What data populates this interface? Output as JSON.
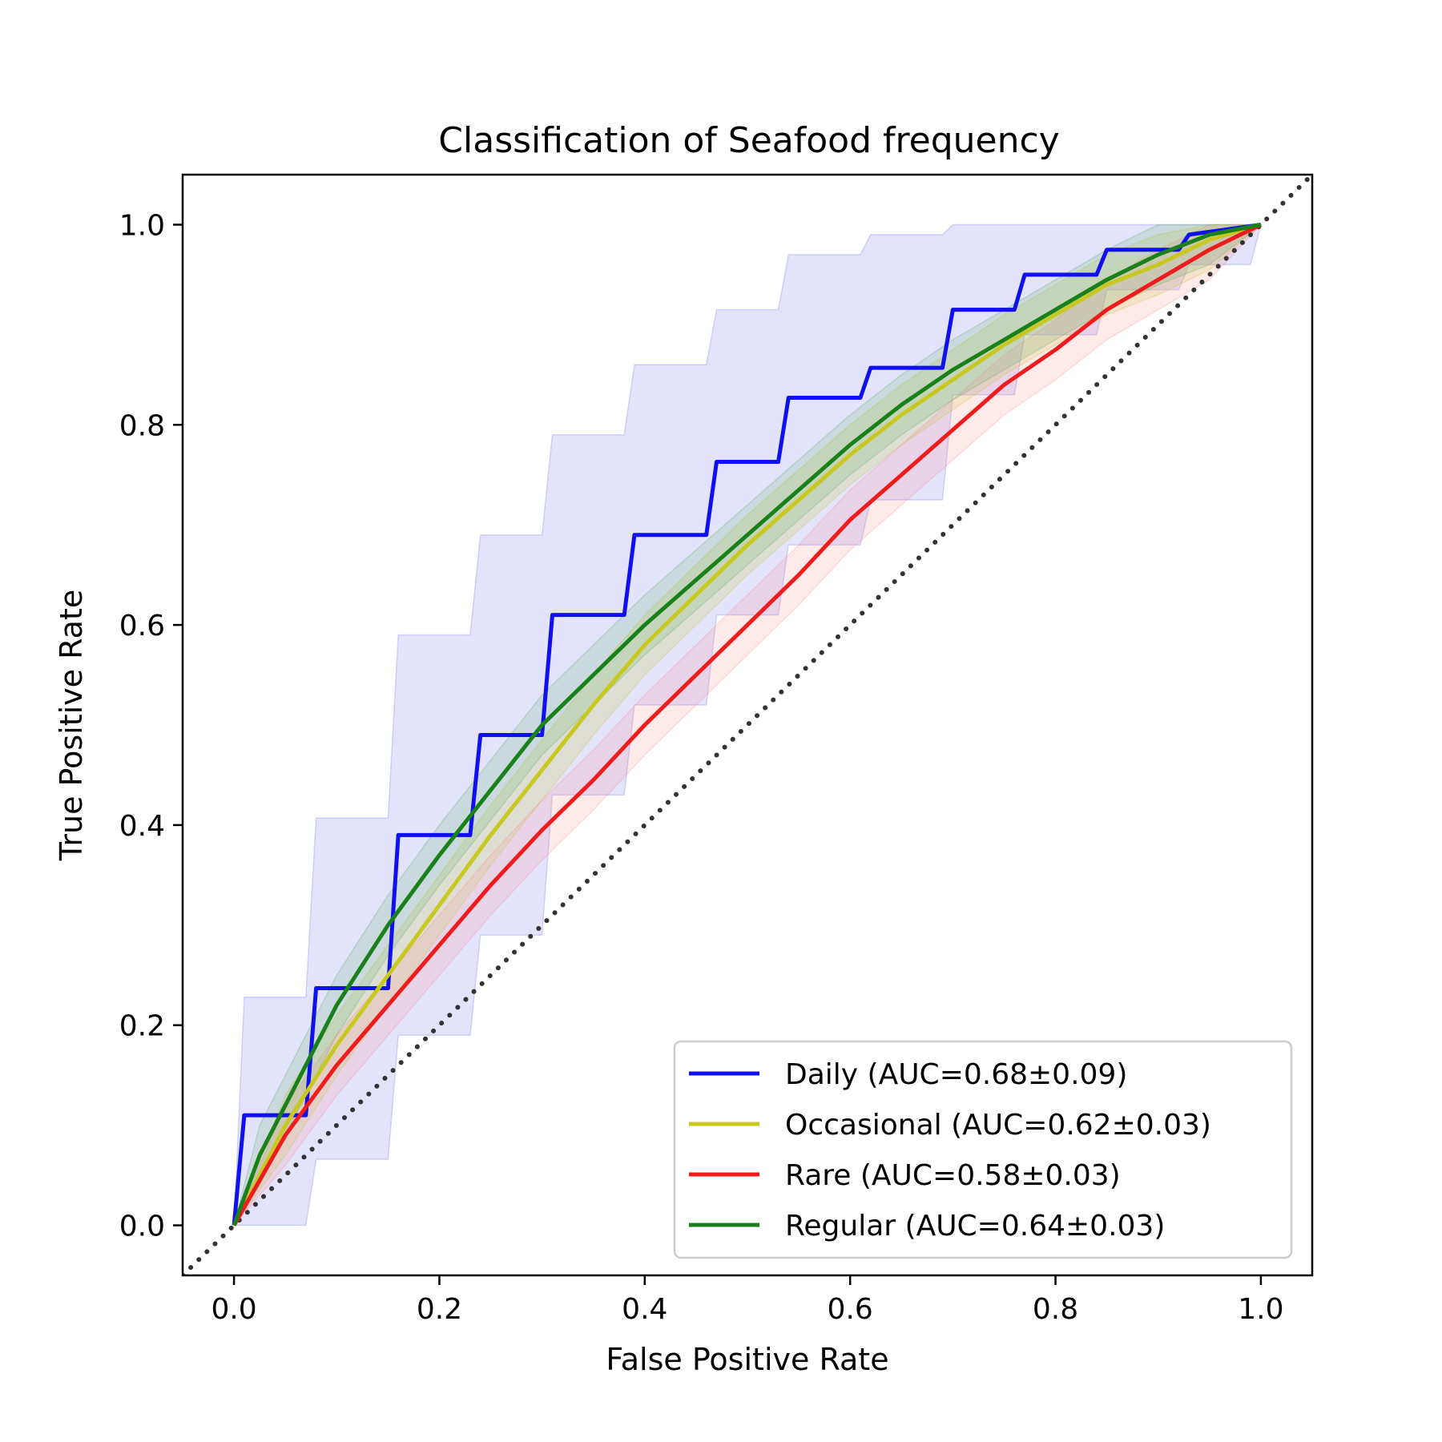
{
  "chart_data": {
    "type": "line",
    "title": "Classification of Seafood frequency",
    "xlabel": "False Positive Rate",
    "ylabel": "True Positive Rate",
    "xlim": [
      -0.05,
      1.05
    ],
    "ylim": [
      -0.05,
      1.05
    ],
    "xticks": [
      "0.0",
      "0.2",
      "0.4",
      "0.6",
      "0.8",
      "1.0"
    ],
    "yticks": [
      "0.0",
      "0.2",
      "0.4",
      "0.6",
      "0.8",
      "1.0"
    ],
    "grid": false,
    "legend_position": "lower-right",
    "chance_line": {
      "x": [
        -0.05,
        1.05
      ],
      "y": [
        -0.05,
        1.05
      ],
      "color": "#333333",
      "style": "dotted"
    },
    "series": [
      {
        "name": "Daily (AUC=0.68±0.09)",
        "color": "#1010ee",
        "band_color": "#6666ee",
        "x": [
          0.0,
          0.01,
          0.07,
          0.08,
          0.15,
          0.16,
          0.23,
          0.24,
          0.3,
          0.31,
          0.38,
          0.39,
          0.46,
          0.47,
          0.53,
          0.54,
          0.61,
          0.62,
          0.69,
          0.7,
          0.76,
          0.77,
          0.84,
          0.85,
          0.92,
          0.93,
          1.0
        ],
        "y": [
          0.0,
          0.11,
          0.11,
          0.237,
          0.237,
          0.39,
          0.39,
          0.49,
          0.49,
          0.61,
          0.61,
          0.69,
          0.69,
          0.763,
          0.763,
          0.827,
          0.827,
          0.857,
          0.857,
          0.915,
          0.915,
          0.95,
          0.95,
          0.975,
          0.975,
          0.99,
          1.0
        ],
        "upper_x": [
          0.0,
          0.01,
          0.07,
          0.08,
          0.15,
          0.16,
          0.23,
          0.24,
          0.3,
          0.31,
          0.38,
          0.39,
          0.46,
          0.47,
          0.53,
          0.54,
          0.61,
          0.62,
          0.69,
          0.7,
          0.92,
          0.93,
          1.0
        ],
        "upper_y": [
          0.0,
          0.228,
          0.228,
          0.407,
          0.407,
          0.59,
          0.59,
          0.69,
          0.69,
          0.79,
          0.79,
          0.86,
          0.86,
          0.915,
          0.915,
          0.97,
          0.97,
          0.99,
          0.99,
          1.0,
          1.0,
          1.0,
          1.0
        ],
        "lower_x": [
          0.0,
          0.07,
          0.08,
          0.15,
          0.16,
          0.23,
          0.24,
          0.3,
          0.31,
          0.38,
          0.39,
          0.46,
          0.47,
          0.53,
          0.54,
          0.61,
          0.62,
          0.69,
          0.7,
          0.76,
          0.77,
          0.84,
          0.85,
          0.92,
          0.93,
          0.99,
          1.0
        ],
        "lower_y": [
          0.0,
          0.0,
          0.066,
          0.066,
          0.19,
          0.19,
          0.29,
          0.29,
          0.43,
          0.43,
          0.52,
          0.52,
          0.61,
          0.61,
          0.68,
          0.68,
          0.725,
          0.725,
          0.83,
          0.83,
          0.89,
          0.89,
          0.935,
          0.935,
          0.96,
          0.96,
          1.0
        ]
      },
      {
        "name": "Occasional (AUC=0.62±0.03)",
        "color": "#c8c820",
        "band_color": "#c8c820",
        "x": [
          0.0,
          0.05,
          0.1,
          0.15,
          0.2,
          0.25,
          0.3,
          0.35,
          0.4,
          0.45,
          0.5,
          0.55,
          0.6,
          0.65,
          0.7,
          0.75,
          0.8,
          0.85,
          0.9,
          0.95,
          1.0
        ],
        "y": [
          0.0,
          0.1,
          0.18,
          0.25,
          0.32,
          0.39,
          0.455,
          0.52,
          0.58,
          0.63,
          0.68,
          0.725,
          0.77,
          0.81,
          0.845,
          0.88,
          0.91,
          0.94,
          0.96,
          0.985,
          1.0
        ],
        "band": 0.03
      },
      {
        "name": "Rare (AUC=0.58±0.03)",
        "color": "#ee1c1c",
        "band_color": "#ff8888",
        "x": [
          0.0,
          0.05,
          0.1,
          0.15,
          0.2,
          0.25,
          0.3,
          0.35,
          0.4,
          0.45,
          0.5,
          0.55,
          0.6,
          0.65,
          0.7,
          0.75,
          0.8,
          0.85,
          0.9,
          0.95,
          1.0
        ],
        "y": [
          0.0,
          0.09,
          0.16,
          0.22,
          0.28,
          0.34,
          0.395,
          0.445,
          0.5,
          0.55,
          0.6,
          0.65,
          0.705,
          0.75,
          0.795,
          0.84,
          0.875,
          0.915,
          0.945,
          0.975,
          1.0
        ],
        "band": 0.03
      },
      {
        "name": "Regular (AUC=0.64±0.03)",
        "color": "#1a801a",
        "band_color": "#55aa55",
        "x": [
          0.0,
          0.025,
          0.05,
          0.075,
          0.1,
          0.15,
          0.2,
          0.25,
          0.3,
          0.35,
          0.4,
          0.45,
          0.5,
          0.55,
          0.6,
          0.65,
          0.7,
          0.75,
          0.8,
          0.85,
          0.9,
          0.95,
          1.0
        ],
        "y": [
          0.0,
          0.07,
          0.12,
          0.17,
          0.22,
          0.3,
          0.37,
          0.435,
          0.5,
          0.55,
          0.6,
          0.645,
          0.69,
          0.735,
          0.78,
          0.82,
          0.855,
          0.885,
          0.915,
          0.945,
          0.97,
          0.99,
          1.0
        ],
        "band": 0.03
      }
    ]
  }
}
